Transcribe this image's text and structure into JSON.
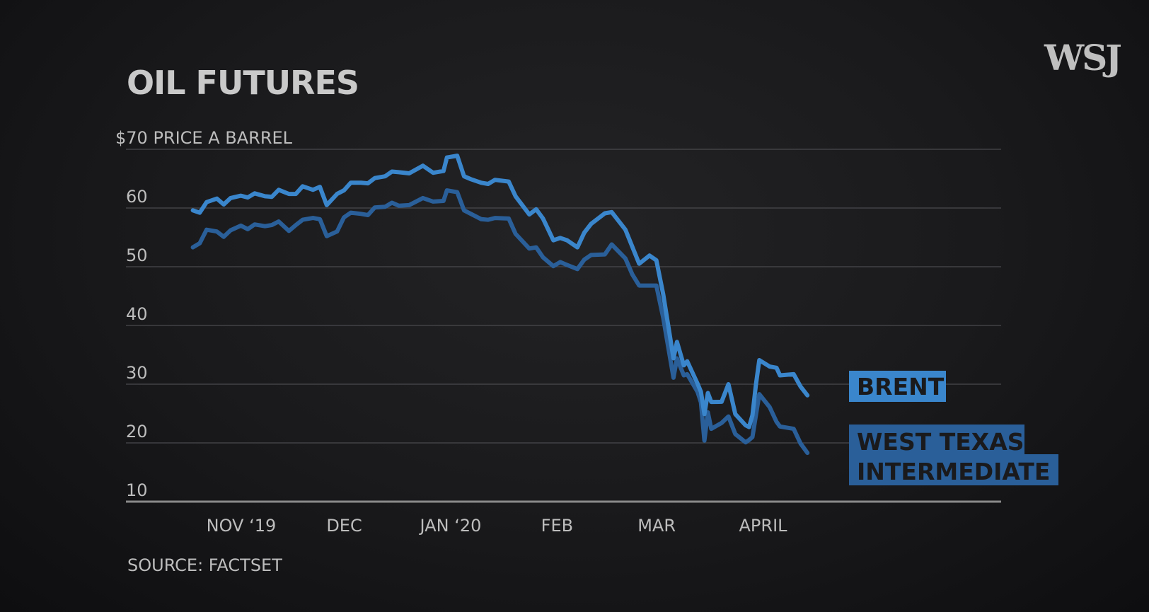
{
  "title": "OIL FUTURES",
  "logo_text": "WSJ",
  "source": "SOURCE: FACTSET",
  "colors": {
    "background": "#1a1a1c",
    "brent": "#3a86cc",
    "wti": "#2a5f99",
    "wti_label_text": "#1a1a1c",
    "brent_label_text": "#1a1a1c",
    "gridline": "#4a4a4e",
    "text": "#bdbdbd"
  },
  "chart_data": {
    "type": "line",
    "title": "OIL FUTURES",
    "ylabel": "$70 PRICE A BARREL",
    "ylim": [
      10,
      70
    ],
    "yticks": [
      10,
      20,
      30,
      40,
      50,
      60,
      70
    ],
    "ytick_labels": [
      "10",
      "20",
      "30",
      "40",
      "50",
      "60",
      "$70 PRICE A BARREL"
    ],
    "xlim": [
      "2019-10-18",
      "2020-04-25"
    ],
    "xticks": [
      {
        "date": "2019-11-01",
        "label": "NOV ‘19"
      },
      {
        "date": "2019-12-01",
        "label": "DEC"
      },
      {
        "date": "2020-01-01",
        "label": "JAN ‘20"
      },
      {
        "date": "2020-02-01",
        "label": "FEB"
      },
      {
        "date": "2020-03-01",
        "label": "MAR"
      },
      {
        "date": "2020-04-01",
        "label": "APRIL"
      }
    ],
    "grid": true,
    "series": [
      {
        "name": "BRENT",
        "x": [
          "2019-10-21",
          "2019-10-23",
          "2019-10-25",
          "2019-10-28",
          "2019-10-30",
          "2019-11-01",
          "2019-11-04",
          "2019-11-06",
          "2019-11-08",
          "2019-11-11",
          "2019-11-13",
          "2019-11-15",
          "2019-11-18",
          "2019-11-20",
          "2019-11-22",
          "2019-11-25",
          "2019-11-27",
          "2019-11-29",
          "2019-12-02",
          "2019-12-04",
          "2019-12-06",
          "2019-12-09",
          "2019-12-11",
          "2019-12-13",
          "2019-12-16",
          "2019-12-18",
          "2019-12-20",
          "2019-12-23",
          "2019-12-27",
          "2019-12-30",
          "2020-01-02",
          "2020-01-03",
          "2020-01-06",
          "2020-01-08",
          "2020-01-10",
          "2020-01-13",
          "2020-01-15",
          "2020-01-17",
          "2020-01-21",
          "2020-01-23",
          "2020-01-27",
          "2020-01-29",
          "2020-01-31",
          "2020-02-03",
          "2020-02-05",
          "2020-02-07",
          "2020-02-10",
          "2020-02-12",
          "2020-02-14",
          "2020-02-18",
          "2020-02-20",
          "2020-02-24",
          "2020-02-26",
          "2020-02-28",
          "2020-03-02",
          "2020-03-04",
          "2020-03-06",
          "2020-03-09",
          "2020-03-10",
          "2020-03-12",
          "2020-03-13",
          "2020-03-16",
          "2020-03-17",
          "2020-03-18",
          "2020-03-19",
          "2020-03-20",
          "2020-03-23",
          "2020-03-25",
          "2020-03-27",
          "2020-03-30",
          "2020-03-31",
          "2020-04-01",
          "2020-04-02",
          "2020-04-03",
          "2020-04-06",
          "2020-04-08",
          "2020-04-09",
          "2020-04-13",
          "2020-04-15",
          "2020-04-17"
        ],
        "values": [
          59.6,
          59.2,
          61.0,
          61.6,
          60.6,
          61.7,
          62.1,
          61.8,
          62.5,
          62.0,
          61.9,
          63.1,
          62.4,
          62.4,
          63.7,
          63.1,
          63.6,
          60.5,
          62.4,
          63.0,
          64.3,
          64.3,
          64.2,
          65.1,
          65.4,
          66.2,
          66.1,
          65.9,
          67.2,
          66.0,
          66.3,
          68.6,
          68.9,
          65.4,
          64.9,
          64.3,
          64.1,
          64.8,
          64.5,
          62.0,
          58.9,
          59.8,
          58.2,
          54.5,
          54.9,
          54.5,
          53.3,
          55.8,
          57.3,
          59.1,
          59.3,
          56.3,
          53.4,
          50.5,
          51.9,
          51.1,
          45.3,
          34.4,
          37.2,
          33.2,
          33.9,
          30.1,
          28.7,
          24.9,
          28.5,
          26.98,
          27.0,
          30.0,
          24.9,
          23.0,
          22.7,
          24.7,
          29.9,
          34.1,
          33.0,
          32.8,
          31.5,
          31.7,
          29.6,
          28.1
        ]
      },
      {
        "name": "WEST TEXAS INTERMEDIATE",
        "x": [
          "2019-10-21",
          "2019-10-23",
          "2019-10-25",
          "2019-10-28",
          "2019-10-30",
          "2019-11-01",
          "2019-11-04",
          "2019-11-06",
          "2019-11-08",
          "2019-11-11",
          "2019-11-13",
          "2019-11-15",
          "2019-11-18",
          "2019-11-20",
          "2019-11-22",
          "2019-11-25",
          "2019-11-27",
          "2019-11-29",
          "2019-12-02",
          "2019-12-04",
          "2019-12-06",
          "2019-12-09",
          "2019-12-11",
          "2019-12-13",
          "2019-12-16",
          "2019-12-18",
          "2019-12-20",
          "2019-12-23",
          "2019-12-27",
          "2019-12-30",
          "2020-01-02",
          "2020-01-03",
          "2020-01-06",
          "2020-01-08",
          "2020-01-10",
          "2020-01-13",
          "2020-01-15",
          "2020-01-17",
          "2020-01-21",
          "2020-01-23",
          "2020-01-27",
          "2020-01-29",
          "2020-01-31",
          "2020-02-03",
          "2020-02-05",
          "2020-02-07",
          "2020-02-10",
          "2020-02-12",
          "2020-02-14",
          "2020-02-18",
          "2020-02-20",
          "2020-02-24",
          "2020-02-26",
          "2020-02-28",
          "2020-03-02",
          "2020-03-04",
          "2020-03-06",
          "2020-03-09",
          "2020-03-10",
          "2020-03-12",
          "2020-03-13",
          "2020-03-16",
          "2020-03-17",
          "2020-03-18",
          "2020-03-19",
          "2020-03-20",
          "2020-03-23",
          "2020-03-25",
          "2020-03-27",
          "2020-03-30",
          "2020-03-31",
          "2020-04-01",
          "2020-04-02",
          "2020-04-03",
          "2020-04-06",
          "2020-04-08",
          "2020-04-09",
          "2020-04-13",
          "2020-04-15",
          "2020-04-17"
        ],
        "values": [
          53.3,
          54.0,
          56.3,
          56.0,
          55.1,
          56.2,
          57.0,
          56.4,
          57.2,
          56.9,
          57.1,
          57.7,
          56.1,
          57.1,
          58.0,
          58.3,
          58.1,
          55.2,
          56.0,
          58.4,
          59.2,
          59.0,
          58.8,
          60.1,
          60.2,
          60.9,
          60.4,
          60.5,
          61.7,
          61.1,
          61.2,
          63.0,
          62.7,
          59.6,
          59.0,
          58.1,
          58.0,
          58.3,
          58.2,
          55.6,
          53.1,
          53.3,
          51.6,
          50.1,
          50.8,
          50.3,
          49.6,
          51.2,
          52.0,
          52.1,
          53.8,
          51.4,
          48.7,
          46.8,
          46.8,
          46.8,
          41.3,
          31.1,
          34.4,
          31.5,
          31.7,
          28.7,
          26.9,
          20.4,
          25.2,
          22.4,
          23.4,
          24.5,
          21.5,
          20.1,
          20.5,
          21.0,
          24.7,
          28.3,
          26.1,
          23.6,
          22.8,
          22.4,
          19.9,
          18.3
        ]
      }
    ],
    "series_labels": [
      {
        "series": "BRENT",
        "lines": [
          "BRENT"
        ]
      },
      {
        "series": "WEST TEXAS INTERMEDIATE",
        "lines": [
          "WEST TEXAS",
          "INTERMEDIATE"
        ]
      }
    ]
  }
}
